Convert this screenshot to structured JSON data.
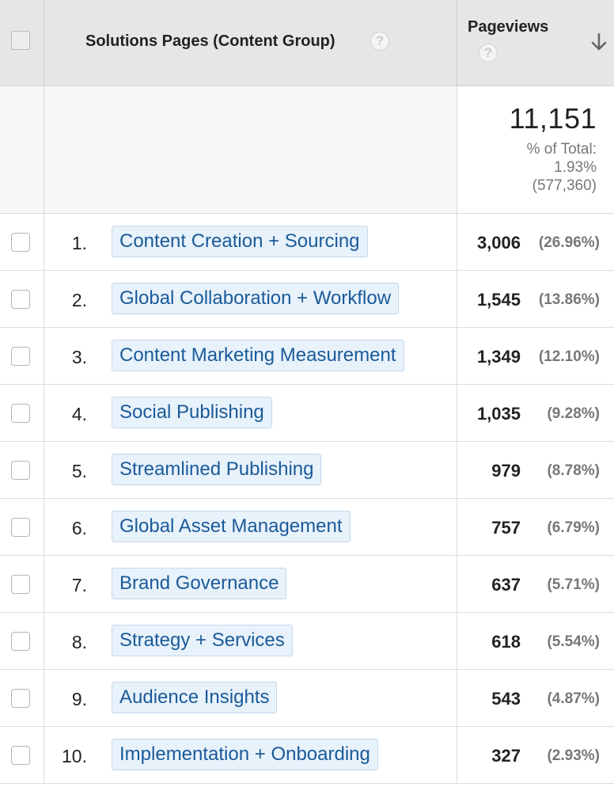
{
  "header": {
    "dimension_title": "Solutions Pages (Content Group)",
    "metric_title": "Pageviews",
    "help_glyph": "?",
    "sort_direction": "descending"
  },
  "totals": {
    "value": "11,151",
    "pct_label": "% of Total:",
    "pct_value": "1.93%",
    "total_all": "(577,360)"
  },
  "rows": [
    {
      "index": "1.",
      "label": "Content Creation + Sourcing",
      "value": "3,006",
      "pct": "(26.96%)"
    },
    {
      "index": "2.",
      "label": "Global Collaboration + Workflow",
      "value": "1,545",
      "pct": "(13.86%)"
    },
    {
      "index": "3.",
      "label": "Content Marketing Measurement",
      "value": "1,349",
      "pct": "(12.10%)"
    },
    {
      "index": "4.",
      "label": "Social Publishing",
      "value": "1,035",
      "pct": "(9.28%)"
    },
    {
      "index": "5.",
      "label": "Streamlined Publishing",
      "value": "979",
      "pct": "(8.78%)"
    },
    {
      "index": "6.",
      "label": "Global Asset Management",
      "value": "757",
      "pct": "(6.79%)"
    },
    {
      "index": "7.",
      "label": "Brand Governance",
      "value": "637",
      "pct": "(5.71%)"
    },
    {
      "index": "8.",
      "label": "Strategy + Services",
      "value": "618",
      "pct": "(5.54%)"
    },
    {
      "index": "9.",
      "label": "Audience Insights",
      "value": "543",
      "pct": "(4.87%)"
    },
    {
      "index": "10.",
      "label": "Implementation + Onboarding",
      "value": "327",
      "pct": "(2.93%)"
    }
  ],
  "colors": {
    "link": "#1a5a99",
    "label_bg": "#e8f2fb",
    "header_bg": "#e6e6e6"
  }
}
